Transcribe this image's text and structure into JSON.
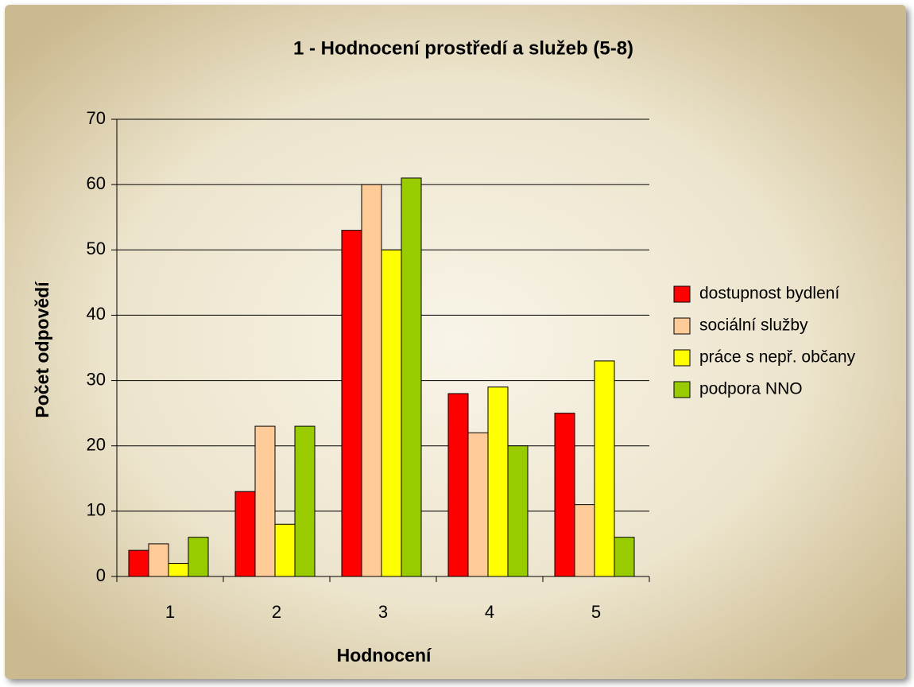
{
  "chart_data": {
    "type": "bar",
    "title": "1 - Hodnocení prostředí a služeb (5-8)",
    "x_label": "Hodnocení",
    "y_label": "Počet odpovědí",
    "categories": [
      "1",
      "2",
      "3",
      "4",
      "5"
    ],
    "series": [
      {
        "name": "dostupnost bydlení",
        "color": "#ff0000",
        "values": [
          4,
          13,
          53,
          28,
          25
        ]
      },
      {
        "name": "sociální služby",
        "color": "#ffcc99",
        "values": [
          5,
          23,
          60,
          22,
          11
        ]
      },
      {
        "name": "práce s nepř. občany",
        "color": "#ffff00",
        "values": [
          2,
          8,
          50,
          29,
          33
        ]
      },
      {
        "name": "podpora NNO",
        "color": "#99cc00",
        "values": [
          6,
          23,
          61,
          20,
          6
        ]
      }
    ],
    "ylim": [
      0,
      70
    ],
    "yticks": [
      0,
      10,
      20,
      30,
      40,
      50,
      60,
      70
    ],
    "grid": true,
    "legend": "right"
  }
}
